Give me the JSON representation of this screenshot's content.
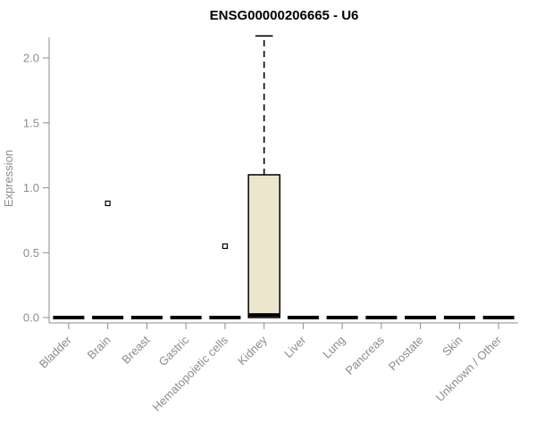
{
  "chart": {
    "title": "ENSG00000206665 - U6",
    "ylabel": "Expression"
  },
  "chart_data": {
    "type": "box",
    "title": "ENSG00000206665 - U6",
    "xlabel": "",
    "ylabel": "Expression",
    "ylim": [
      0,
      2.2
    ],
    "yticks": [
      0,
      0.5,
      1,
      1.5,
      2
    ],
    "grid": false,
    "legend": false,
    "categories": [
      "Bladder",
      "Brain",
      "Breast",
      "Gastric",
      "Hematopoietic cells",
      "Kidney",
      "Liver",
      "Lung",
      "Pancreas",
      "Prostate",
      "Skin",
      "Unknown / Other"
    ],
    "boxes": [
      {
        "category": "Bladder",
        "low": 0,
        "q1": 0,
        "median": 0,
        "q3": 0,
        "high": 0,
        "outliers": []
      },
      {
        "category": "Brain",
        "low": 0,
        "q1": 0,
        "median": 0,
        "q3": 0,
        "high": 0,
        "outliers": [
          0.88
        ]
      },
      {
        "category": "Breast",
        "low": 0,
        "q1": 0,
        "median": 0,
        "q3": 0,
        "high": 0,
        "outliers": []
      },
      {
        "category": "Gastric",
        "low": 0,
        "q1": 0,
        "median": 0,
        "q3": 0,
        "high": 0,
        "outliers": []
      },
      {
        "category": "Hematopoietic cells",
        "low": 0,
        "q1": 0,
        "median": 0,
        "q3": 0,
        "high": 0,
        "outliers": [
          0.55
        ]
      },
      {
        "category": "Kidney",
        "low": 0,
        "q1": 0,
        "median": 0.02,
        "q3": 1.1,
        "high": 2.17,
        "outliers": []
      },
      {
        "category": "Liver",
        "low": 0,
        "q1": 0,
        "median": 0,
        "q3": 0,
        "high": 0,
        "outliers": []
      },
      {
        "category": "Lung",
        "low": 0,
        "q1": 0,
        "median": 0,
        "q3": 0,
        "high": 0,
        "outliers": []
      },
      {
        "category": "Pancreas",
        "low": 0,
        "q1": 0,
        "median": 0,
        "q3": 0,
        "high": 0,
        "outliers": []
      },
      {
        "category": "Prostate",
        "low": 0,
        "q1": 0,
        "median": 0,
        "q3": 0,
        "high": 0,
        "outliers": []
      },
      {
        "category": "Skin",
        "low": 0,
        "q1": 0,
        "median": 0,
        "q3": 0,
        "high": 0,
        "outliers": []
      },
      {
        "category": "Unknown / Other",
        "low": 0,
        "q1": 0,
        "median": 0,
        "q3": 0,
        "high": 0,
        "outliers": []
      }
    ],
    "colors": {
      "box_fill": "#ece6cd",
      "box_stroke": "#000000",
      "median": "#000000",
      "whisker": "#000000",
      "outlier": "#000000",
      "axis": "#8c8c8c",
      "tick_text": "#8c8c8c",
      "title_text": "#000000"
    }
  }
}
